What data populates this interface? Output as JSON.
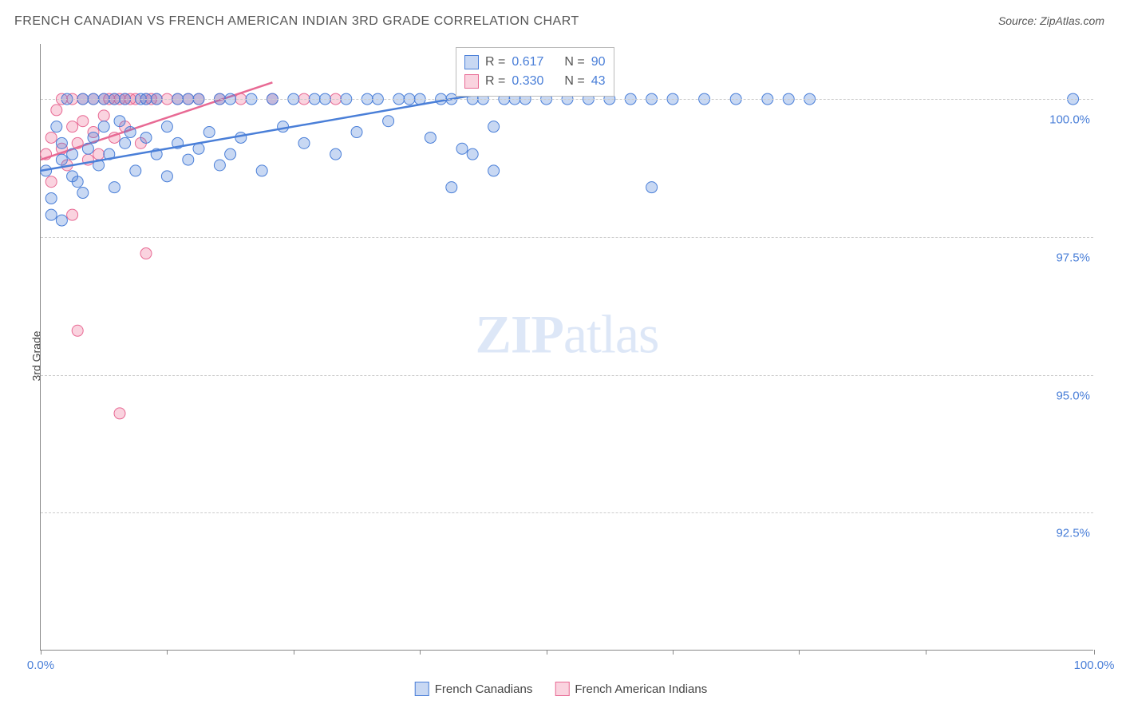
{
  "title": "FRENCH CANADIAN VS FRENCH AMERICAN INDIAN 3RD GRADE CORRELATION CHART",
  "source": "Source: ZipAtlas.com",
  "watermark": {
    "bold": "ZIP",
    "light": "atlas"
  },
  "y_axis_label": "3rd Grade",
  "chart": {
    "type": "scatter",
    "xlim": [
      0,
      100
    ],
    "ylim": [
      90,
      101
    ],
    "y_ticks": [
      92.5,
      95.0,
      97.5,
      100.0
    ],
    "y_tick_labels": [
      "92.5%",
      "95.0%",
      "97.5%",
      "100.0%"
    ],
    "x_ticks": [
      0,
      12,
      24,
      36,
      48,
      60,
      72,
      84,
      100
    ],
    "x_tick_labels": {
      "0": "0.0%",
      "100": "100.0%"
    },
    "grid_color": "#cccccc",
    "background_color": "#ffffff",
    "axis_color": "#888888"
  },
  "series": {
    "blue": {
      "label": "French Canadians",
      "fill": "rgba(74,127,216,0.30)",
      "stroke": "#4a7fd8",
      "marker_size": 14,
      "R": "0.617",
      "N": "90",
      "trend": {
        "x1": 0,
        "y1": 98.7,
        "x2": 45,
        "y2": 100.2
      },
      "points": [
        [
          0.5,
          98.7
        ],
        [
          1,
          98.2
        ],
        [
          1.5,
          99.5
        ],
        [
          2,
          98.9
        ],
        [
          2,
          99.2
        ],
        [
          2.5,
          100
        ],
        [
          3,
          98.6
        ],
        [
          3,
          99.0
        ],
        [
          3.5,
          98.5
        ],
        [
          4,
          100
        ],
        [
          4,
          98.3
        ],
        [
          4.5,
          99.1
        ],
        [
          5,
          99.3
        ],
        [
          5,
          100
        ],
        [
          5.5,
          98.8
        ],
        [
          6,
          99.5
        ],
        [
          6,
          100
        ],
        [
          6.5,
          99.0
        ],
        [
          7,
          98.4
        ],
        [
          7,
          100
        ],
        [
          7.5,
          99.6
        ],
        [
          8,
          99.2
        ],
        [
          8,
          100
        ],
        [
          8.5,
          99.4
        ],
        [
          9,
          98.7
        ],
        [
          9.5,
          100
        ],
        [
          10,
          99.3
        ],
        [
          10,
          100
        ],
        [
          11,
          99.0
        ],
        [
          11,
          100
        ],
        [
          12,
          98.6
        ],
        [
          12,
          99.5
        ],
        [
          13,
          99.2
        ],
        [
          13,
          100
        ],
        [
          14,
          98.9
        ],
        [
          14,
          100
        ],
        [
          15,
          99.1
        ],
        [
          15,
          100
        ],
        [
          16,
          99.4
        ],
        [
          17,
          98.8
        ],
        [
          17,
          100
        ],
        [
          18,
          99.0
        ],
        [
          18,
          100
        ],
        [
          19,
          99.3
        ],
        [
          20,
          100
        ],
        [
          21,
          98.7
        ],
        [
          22,
          100
        ],
        [
          23,
          99.5
        ],
        [
          24,
          100
        ],
        [
          25,
          99.2
        ],
        [
          26,
          100
        ],
        [
          27,
          100
        ],
        [
          28,
          99.0
        ],
        [
          29,
          100
        ],
        [
          30,
          99.4
        ],
        [
          31,
          100
        ],
        [
          32,
          100
        ],
        [
          33,
          99.6
        ],
        [
          34,
          100
        ],
        [
          35,
          100
        ],
        [
          36,
          100
        ],
        [
          37,
          99.3
        ],
        [
          38,
          100
        ],
        [
          39,
          100
        ],
        [
          40,
          99.1
        ],
        [
          41,
          100
        ],
        [
          42,
          100
        ],
        [
          43,
          99.5
        ],
        [
          44,
          100
        ],
        [
          45,
          100
        ],
        [
          46,
          100
        ],
        [
          48,
          100
        ],
        [
          50,
          100
        ],
        [
          52,
          100
        ],
        [
          54,
          100
        ],
        [
          56,
          100
        ],
        [
          58,
          100
        ],
        [
          60,
          100
        ],
        [
          39,
          98.4
        ],
        [
          41,
          99.0
        ],
        [
          43,
          98.7
        ],
        [
          58,
          98.4
        ],
        [
          63,
          100
        ],
        [
          66,
          100
        ],
        [
          69,
          100
        ],
        [
          71,
          100
        ],
        [
          73,
          100
        ],
        [
          98,
          100
        ],
        [
          1,
          97.9
        ],
        [
          2,
          97.8
        ]
      ]
    },
    "pink": {
      "label": "French American Indians",
      "fill": "rgba(240,110,150,0.30)",
      "stroke": "#e86a94",
      "marker_size": 14,
      "R": "0.330",
      "N": "43",
      "trend": {
        "x1": 0,
        "y1": 98.9,
        "x2": 22,
        "y2": 100.3
      },
      "points": [
        [
          0.5,
          99.0
        ],
        [
          1,
          98.5
        ],
        [
          1,
          99.3
        ],
        [
          1.5,
          99.8
        ],
        [
          2,
          99.1
        ],
        [
          2,
          100
        ],
        [
          2.5,
          98.8
        ],
        [
          3,
          99.5
        ],
        [
          3,
          100
        ],
        [
          3.5,
          99.2
        ],
        [
          4,
          100
        ],
        [
          4,
          99.6
        ],
        [
          4.5,
          98.9
        ],
        [
          5,
          100
        ],
        [
          5,
          99.4
        ],
        [
          5.5,
          99.0
        ],
        [
          6,
          100
        ],
        [
          6,
          99.7
        ],
        [
          6.5,
          100
        ],
        [
          7,
          99.3
        ],
        [
          7,
          100
        ],
        [
          7.5,
          100
        ],
        [
          8,
          99.5
        ],
        [
          8,
          100
        ],
        [
          8.5,
          100
        ],
        [
          9,
          100
        ],
        [
          9.5,
          99.2
        ],
        [
          10,
          100
        ],
        [
          10.5,
          100
        ],
        [
          11,
          100
        ],
        [
          12,
          100
        ],
        [
          13,
          100
        ],
        [
          14,
          100
        ],
        [
          15,
          100
        ],
        [
          17,
          100
        ],
        [
          19,
          100
        ],
        [
          22,
          100
        ],
        [
          25,
          100
        ],
        [
          28,
          100
        ],
        [
          3,
          97.9
        ],
        [
          10,
          97.2
        ],
        [
          3.5,
          95.8
        ],
        [
          7.5,
          94.3
        ]
      ]
    }
  },
  "stats_box": {
    "rows": [
      {
        "swatch_fill": "rgba(74,127,216,0.30)",
        "swatch_stroke": "#4a7fd8",
        "r_label": "R =",
        "r_val": "0.617",
        "n_label": "N =",
        "n_val": "90"
      },
      {
        "swatch_fill": "rgba(240,110,150,0.30)",
        "swatch_stroke": "#e86a94",
        "r_label": "R =",
        "r_val": "0.330",
        "n_label": "N =",
        "n_val": "43"
      }
    ]
  }
}
